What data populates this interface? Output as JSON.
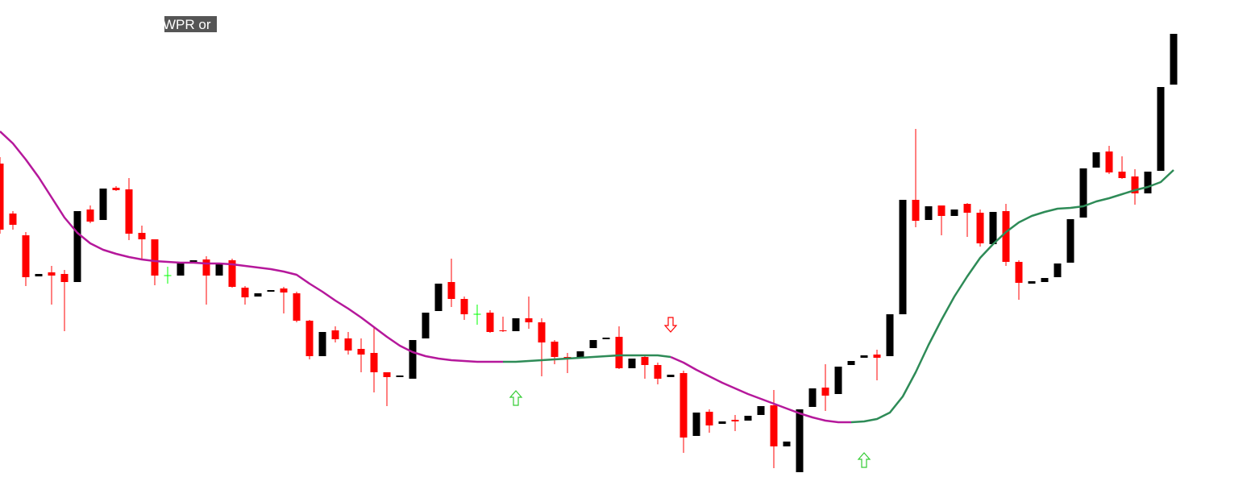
{
  "chart_data": {
    "type": "candlestick",
    "title": "WPR or",
    "xlim": [
      0,
      97
    ],
    "ylim": [
      0,
      623
    ],
    "up_color": "#000000",
    "down_color": "#ff0000",
    "doji_color": "#00ff00",
    "open": [
      420,
      358,
      331,
      280,
      285,
      283,
      273,
      363,
      350,
      390,
      388,
      334,
      326,
      281,
      281,
      296,
      301,
      281,
      300,
      266,
      255,
      261,
      265,
      259,
      225,
      181,
      213,
      203,
      190,
      185,
      161,
      155,
      153,
      203,
      237,
      273,
      252,
      233,
      235,
      213,
      212,
      228,
      223,
      199,
      180,
      180,
      191,
      202,
      205,
      166,
      180,
      170,
      155,
      160,
      82,
      112,
      97,
      102,
      101,
      108,
      120,
      69,
      37,
      118,
      142,
      134,
      170,
      179,
      183,
      181,
      233,
      375,
      350,
      368,
      355,
      370,
      359,
      320,
      361,
      298,
      271,
      273,
      279,
      297,
      353,
      415,
      435,
      410,
      404,
      383,
      411,
      518
    ],
    "high": [
      428,
      361,
      335,
      283,
      293,
      288,
      361,
      368,
      389,
      392,
      402,
      343,
      326,
      292,
      296,
      300,
      305,
      296,
      302,
      268,
      259,
      263,
      267,
      261,
      226,
      211,
      218,
      211,
      203,
      216,
      161,
      157,
      201,
      235,
      271,
      302,
      255,
      245,
      238,
      230,
      228,
      255,
      228,
      201,
      185,
      187,
      201,
      204,
      218,
      178,
      183,
      173,
      158,
      163,
      111,
      115,
      100,
      108,
      107,
      119,
      139,
      75,
      115,
      141,
      171,
      168,
      175,
      182,
      189,
      233,
      375,
      463,
      367,
      368,
      363,
      371,
      363,
      360,
      370,
      300,
      274,
      278,
      296,
      351,
      414,
      434,
      442,
      429,
      413,
      410,
      515,
      581
    ],
    "low": [
      333,
      338,
      268,
      280,
      245,
      212,
      273,
      346,
      350,
      386,
      325,
      301,
      269,
      271,
      281,
      296,
      245,
      281,
      266,
      245,
      255,
      261,
      234,
      223,
      177,
      181,
      198,
      183,
      161,
      136,
      119,
      155,
      153,
      203,
      237,
      242,
      226,
      220,
      210,
      211,
      212,
      215,
      156,
      171,
      160,
      180,
      191,
      202,
      165,
      166,
      153,
      146,
      155,
      61,
      82,
      86,
      97,
      88,
      101,
      108,
      42,
      69,
      37,
      118,
      113,
      134,
      170,
      179,
      151,
      181,
      233,
      341,
      350,
      331,
      355,
      329,
      317,
      320,
      293,
      251,
      271,
      273,
      279,
      297,
      353,
      415,
      407,
      401,
      369,
      383,
      411,
      518
    ],
    "close": [
      338,
      344,
      279,
      283,
      281,
      273,
      361,
      348,
      389,
      387,
      333,
      326,
      281,
      281,
      296,
      300,
      281,
      296,
      267,
      254,
      259,
      263,
      260,
      225,
      181,
      211,
      202,
      188,
      183,
      161,
      155,
      157,
      201,
      235,
      271,
      252,
      233,
      233,
      211,
      212,
      228,
      223,
      198,
      180,
      179,
      187,
      201,
      204,
      166,
      178,
      170,
      153,
      158,
      80,
      111,
      95,
      100,
      100,
      107,
      119,
      69,
      75,
      115,
      141,
      132,
      168,
      175,
      182,
      179,
      233,
      375,
      349,
      367,
      355,
      363,
      359,
      321,
      360,
      298,
      272,
      274,
      278,
      296,
      351,
      414,
      434,
      409,
      402,
      383,
      410,
      515,
      581
    ],
    "series": [
      {
        "color": "#b5189b",
        "values": [
          460,
          445,
          425,
          403,
          378,
          353,
          334,
          321,
          313,
          308,
          304,
          301,
          299,
          298,
          297,
          297,
          296,
          296,
          295,
          293,
          291,
          289,
          286,
          282,
          271,
          261,
          250,
          240,
          229,
          217,
          205,
          194,
          186,
          181,
          178,
          176,
          175,
          174,
          174,
          174,
          null,
          null,
          null,
          null,
          null,
          null,
          null,
          null,
          null,
          null,
          null,
          null,
          180,
          173,
          164,
          156,
          148,
          141,
          134,
          128,
          122,
          116,
          110,
          105,
          101,
          99,
          99,
          null,
          null,
          null,
          null,
          null,
          null,
          null,
          null,
          null,
          null,
          null,
          null,
          null,
          null,
          null,
          null,
          null,
          null,
          null,
          null,
          null,
          null,
          null,
          null,
          null
        ]
      },
      {
        "color": "#2e8b57",
        "values": [
          null,
          null,
          null,
          null,
          null,
          null,
          null,
          null,
          null,
          null,
          null,
          null,
          null,
          null,
          null,
          null,
          null,
          null,
          null,
          null,
          null,
          null,
          null,
          null,
          null,
          null,
          null,
          null,
          null,
          null,
          null,
          null,
          null,
          null,
          null,
          null,
          null,
          null,
          null,
          174,
          174,
          175,
          176,
          177,
          178,
          179,
          180,
          181,
          182,
          182,
          182,
          182,
          180,
          null,
          null,
          null,
          null,
          null,
          null,
          null,
          null,
          null,
          null,
          null,
          null,
          null,
          99,
          100,
          103,
          111,
          131,
          161,
          195,
          226,
          255,
          280,
          303,
          320,
          335,
          347,
          355,
          360,
          364,
          365,
          367,
          373,
          377,
          382,
          387,
          391,
          397,
          412
        ]
      }
    ],
    "up_signals": {
      "color": "#33cc33",
      "x": [
        40,
        67
      ],
      "values": [
        129,
        52
      ]
    },
    "down_signals": {
      "color": "#ff0000",
      "x": [
        52
      ],
      "values": [
        220
      ]
    }
  }
}
